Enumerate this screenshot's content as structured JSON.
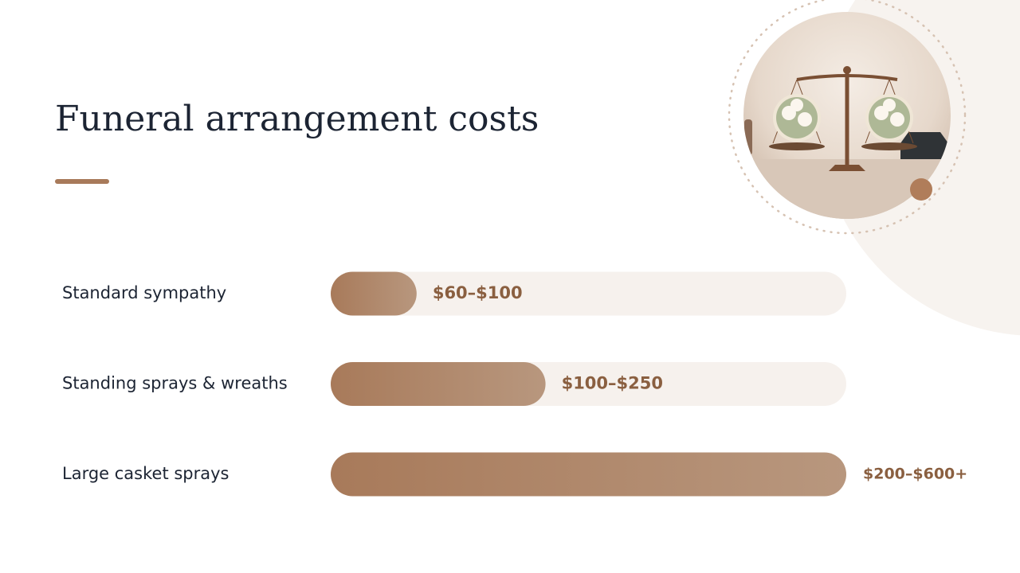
{
  "chart_data": {
    "type": "bar",
    "orientation": "horizontal",
    "title": "Funeral arrangement costs",
    "categories": [
      "Standard sympathy",
      "Standing sprays & wreaths",
      "Large casket sprays"
    ],
    "values": [
      100,
      250,
      600
    ],
    "value_labels": [
      "$60–$100",
      "$100–$250",
      "$200–$600+"
    ],
    "color": "#a87a5a",
    "xlim": [
      0,
      600
    ]
  }
}
